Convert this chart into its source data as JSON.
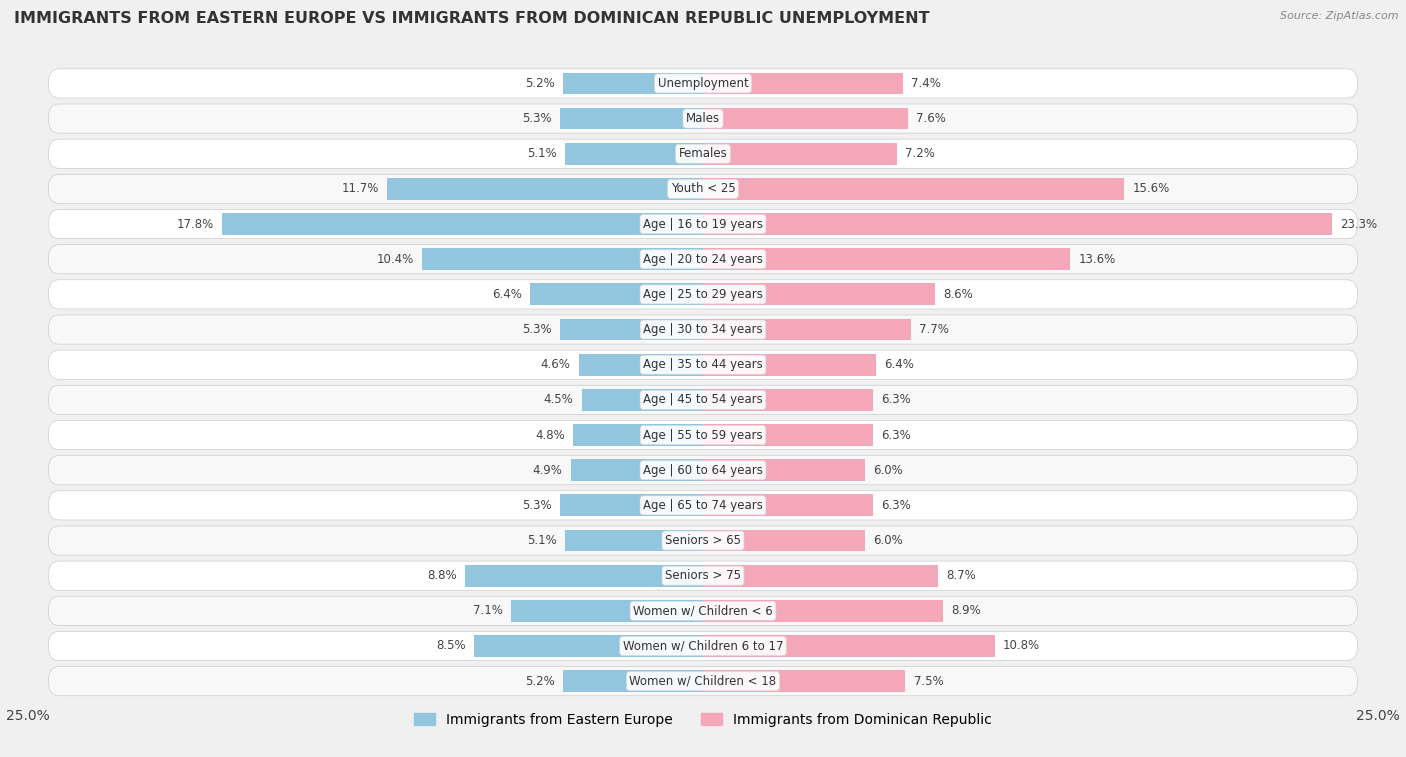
{
  "title": "IMMIGRANTS FROM EASTERN EUROPE VS IMMIGRANTS FROM DOMINICAN REPUBLIC UNEMPLOYMENT",
  "source": "Source: ZipAtlas.com",
  "categories": [
    "Unemployment",
    "Males",
    "Females",
    "Youth < 25",
    "Age | 16 to 19 years",
    "Age | 20 to 24 years",
    "Age | 25 to 29 years",
    "Age | 30 to 34 years",
    "Age | 35 to 44 years",
    "Age | 45 to 54 years",
    "Age | 55 to 59 years",
    "Age | 60 to 64 years",
    "Age | 65 to 74 years",
    "Seniors > 65",
    "Seniors > 75",
    "Women w/ Children < 6",
    "Women w/ Children 6 to 17",
    "Women w/ Children < 18"
  ],
  "left_values": [
    5.2,
    5.3,
    5.1,
    11.7,
    17.8,
    10.4,
    6.4,
    5.3,
    4.6,
    4.5,
    4.8,
    4.9,
    5.3,
    5.1,
    8.8,
    7.1,
    8.5,
    5.2
  ],
  "right_values": [
    7.4,
    7.6,
    7.2,
    15.6,
    23.3,
    13.6,
    8.6,
    7.7,
    6.4,
    6.3,
    6.3,
    6.0,
    6.3,
    6.0,
    8.7,
    8.9,
    10.8,
    7.5
  ],
  "left_color": "#92c5de",
  "right_color": "#f4a7b9",
  "left_label": "Immigrants from Eastern Europe",
  "right_label": "Immigrants from Dominican Republic",
  "x_max": 25.0,
  "bg_color": "#f0f0f0",
  "row_bg_color": "#e8e8e8",
  "row_alt_bg_color": "#f8f8f8",
  "white": "#ffffff",
  "title_fontsize": 11.5,
  "source_fontsize": 8,
  "axis_fontsize": 10,
  "label_fontsize": 8.5,
  "value_fontsize": 8.5
}
